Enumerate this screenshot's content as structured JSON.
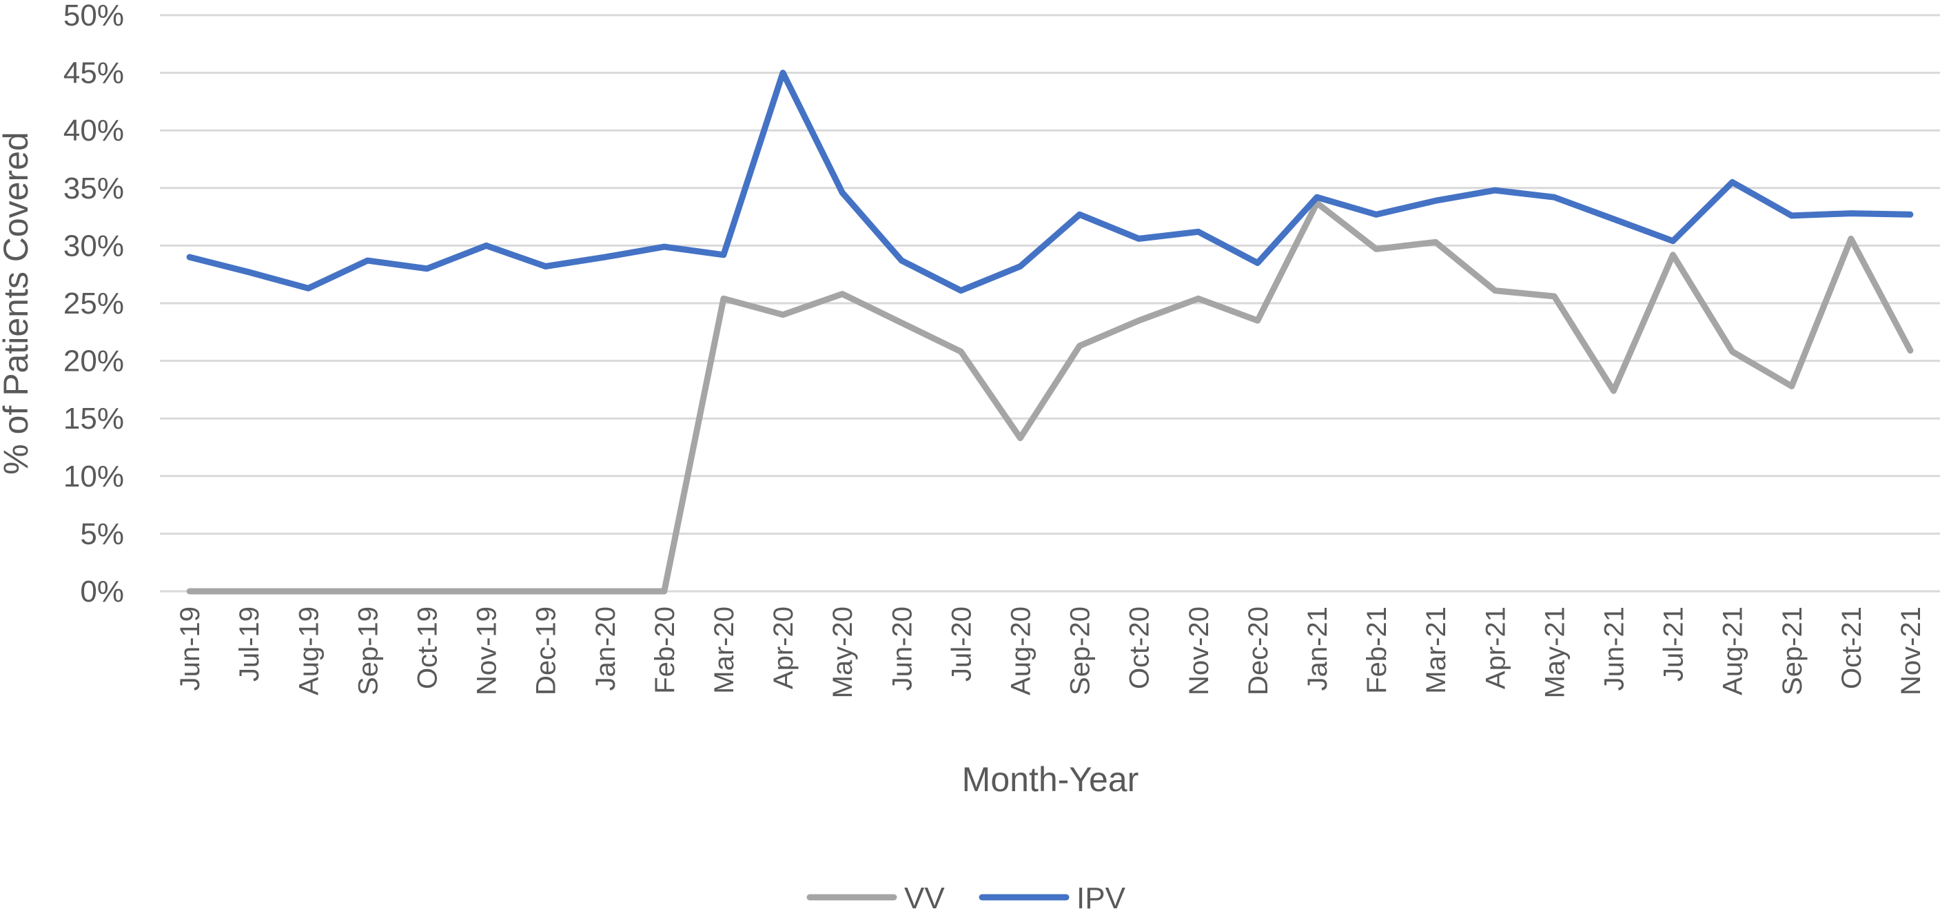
{
  "chart_data": {
    "type": "line",
    "title": "",
    "xlabel": "Month-Year",
    "ylabel": "% of Patients Covered",
    "ylim": [
      0,
      50
    ],
    "y_ticks": [
      "0%",
      "5%",
      "10%",
      "15%",
      "20%",
      "25%",
      "30%",
      "35%",
      "40%",
      "45%",
      "50%"
    ],
    "grid": true,
    "legend": "bottom",
    "categories": [
      "Jun-19",
      "Jul-19",
      "Aug-19",
      "Sep-19",
      "Oct-19",
      "Nov-19",
      "Dec-19",
      "Jan-20",
      "Feb-20",
      "Mar-20",
      "Apr-20",
      "May-20",
      "Jun-20",
      "Jul-20",
      "Aug-20",
      "Sep-20",
      "Oct-20",
      "Nov-20",
      "Dec-20",
      "Jan-21",
      "Feb-21",
      "Mar-21",
      "Apr-21",
      "May-21",
      "Jun-21",
      "Jul-21",
      "Aug-21",
      "Sep-21",
      "Oct-21",
      "Nov-21"
    ],
    "series": [
      {
        "name": "VV",
        "color": "#a5a5a5",
        "values": [
          0,
          0,
          0,
          0,
          0,
          0,
          0,
          0,
          0,
          25.4,
          24.0,
          25.8,
          23.3,
          20.8,
          13.3,
          21.3,
          23.5,
          25.4,
          23.5,
          33.7,
          29.7,
          30.3,
          26.1,
          25.6,
          17.4,
          29.2,
          20.8,
          17.8,
          30.6,
          20.9
        ]
      },
      {
        "name": "IPV",
        "color": "#4472c4",
        "values": [
          29.0,
          27.7,
          26.3,
          28.7,
          28.0,
          30.0,
          28.2,
          29.0,
          29.9,
          29.2,
          45.0,
          34.6,
          28.7,
          26.1,
          28.2,
          32.7,
          30.6,
          31.2,
          28.5,
          34.2,
          32.7,
          33.9,
          34.8,
          34.2,
          32.3,
          30.4,
          35.5,
          32.6,
          32.8,
          32.7
        ]
      }
    ]
  }
}
